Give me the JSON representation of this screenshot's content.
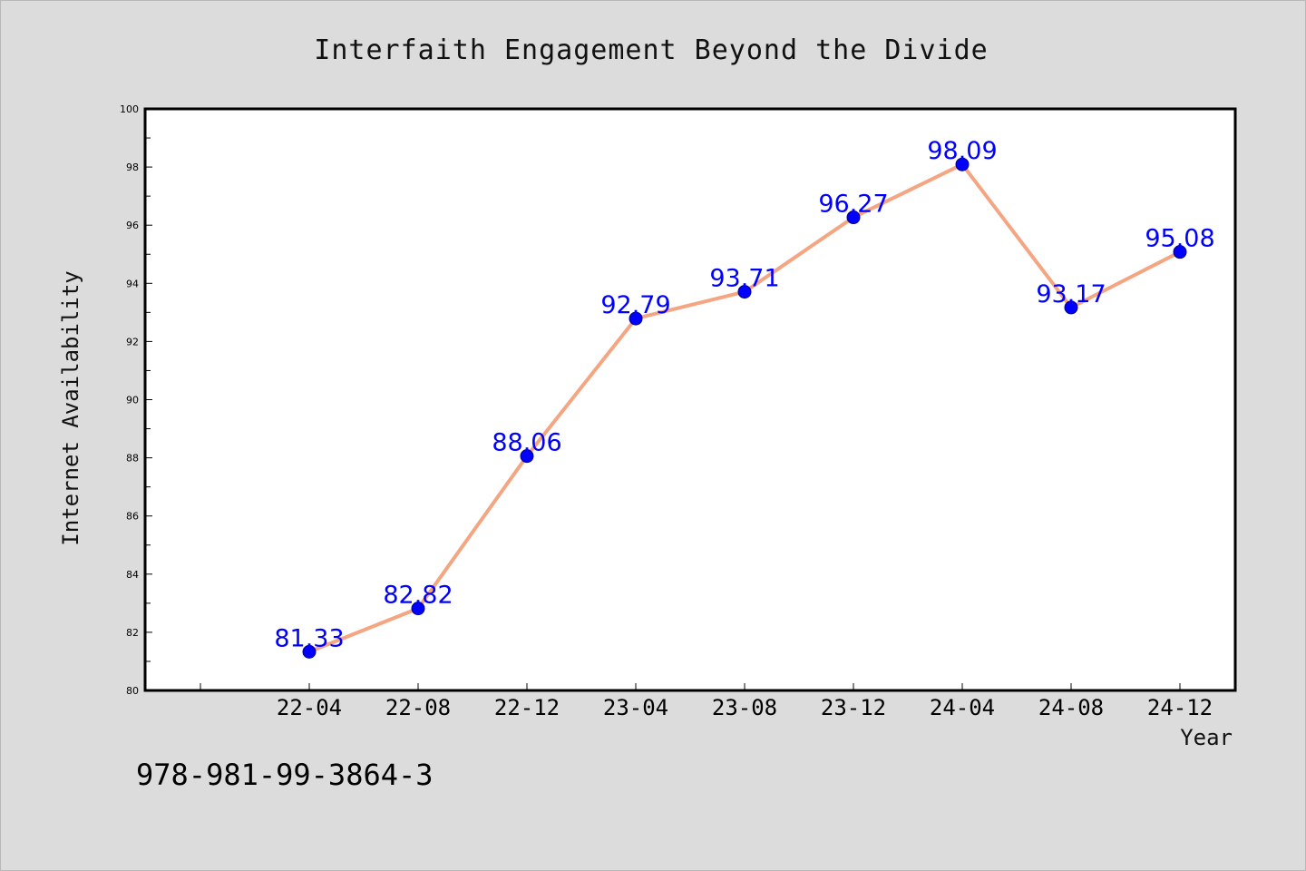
{
  "chart_data": {
    "type": "line",
    "title": "Interfaith Engagement Beyond the Divide",
    "xlabel": "Year",
    "ylabel": "Internet Availability",
    "categories": [
      "22-04",
      "22-08",
      "22-12",
      "23-04",
      "23-08",
      "23-12",
      "24-04",
      "24-08",
      "24-12"
    ],
    "series": [
      {
        "values": [
          81.33,
          82.82,
          88.06,
          92.79,
          93.71,
          96.27,
          98.09,
          93.17,
          95.08
        ]
      }
    ],
    "data_labels": [
      "81.33",
      "82.82",
      "88.06",
      "92.79",
      "93.71",
      "96.27",
      "98.09",
      "93.17",
      "95.08"
    ],
    "ylim": [
      80,
      100
    ],
    "yticks": [
      80,
      82,
      84,
      86,
      88,
      90,
      92,
      94,
      96,
      98,
      100
    ],
    "ytick_labels": [
      "80",
      "82",
      "84",
      "86",
      "88",
      "90",
      "92",
      "94",
      "96",
      "98",
      "100"
    ],
    "grid": false,
    "legend": "none",
    "colors": {
      "line": "#f4a582",
      "marker": "#0000ff",
      "data_label": "#0000ff",
      "background": "#dcdcdc",
      "plot_background": "#ffffff"
    }
  },
  "footer": {
    "isbn": "978-981-99-3864-3"
  }
}
